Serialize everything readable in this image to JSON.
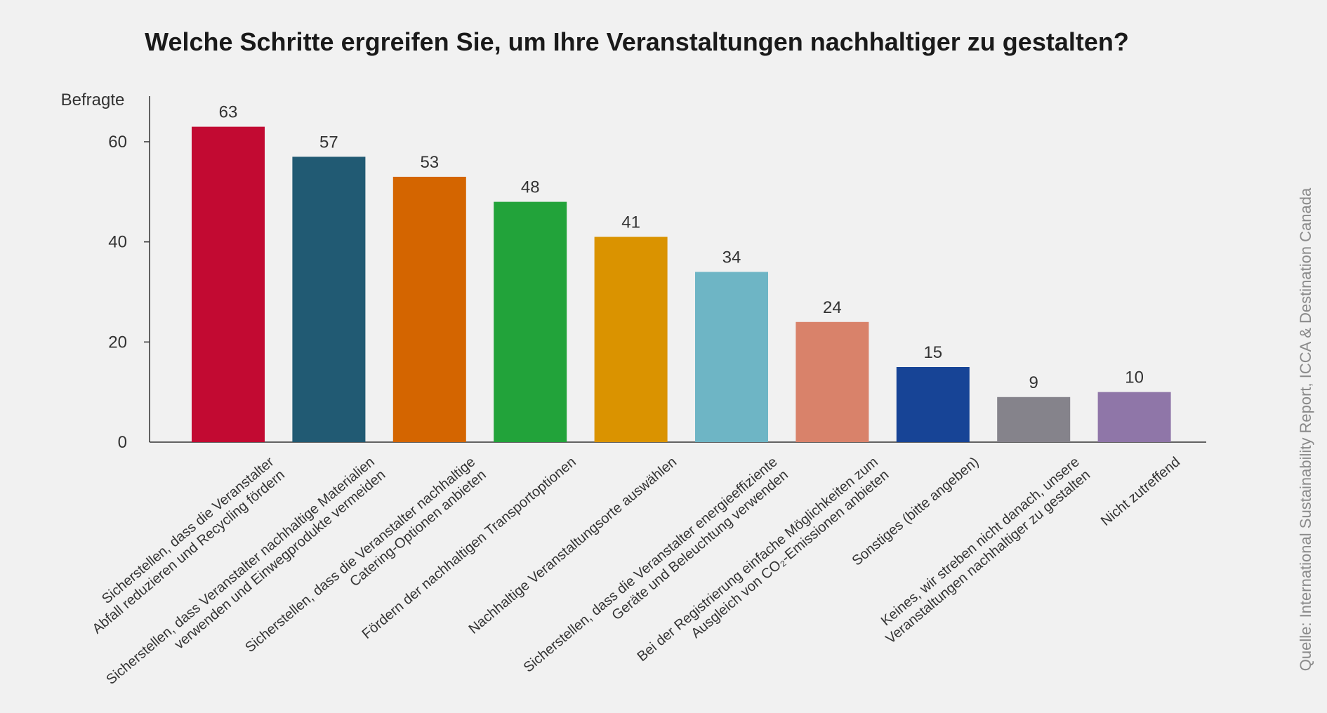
{
  "chart_data": {
    "type": "bar",
    "title": "Welche Schritte ergreifen Sie, um Ihre Veranstaltungen nachhaltiger zu gestalten?",
    "ylabel": "Befragte",
    "xlabel": "",
    "ylim": [
      0,
      70
    ],
    "yticks": [
      0,
      20,
      40,
      60
    ],
    "grid": false,
    "categories": [
      [
        "Sicherstellen, dass die Veranstalter",
        "Abfall reduzieren und Recycling fördern"
      ],
      [
        "Sicherstellen, dass Veranstalter nachhaltige Materialien",
        "verwenden und Einwegprodukte vermeiden"
      ],
      [
        "Sicherstellen, dass die Veranstalter nachhaltige",
        "Catering-Optionen anbieten"
      ],
      [
        "Fördern der nachhaltigen Transportoptionen"
      ],
      [
        "Nachhaltige Veranstaltungsorte auswählen"
      ],
      [
        "Sicherstellen, dass die Veranstalter energieeffiziente",
        "Geräte und Beleuchtung verwenden"
      ],
      [
        "Bei der Registrierung einfache Möglichkeiten zum",
        "Ausgleich von CO₂-Emissionen anbieten"
      ],
      [
        "Sonstiges (bitte angeben)"
      ],
      [
        "Keines, wir streben nicht danach, unsere",
        "Veranstaltungen nachhaltiger zu gestalten"
      ],
      [
        "Nicht zutreffend"
      ]
    ],
    "values": [
      63,
      57,
      53,
      48,
      41,
      34,
      24,
      15,
      9,
      10
    ],
    "colors": [
      "#c20a32",
      "#215a73",
      "#d46500",
      "#22a33a",
      "#da9300",
      "#6eb5c5",
      "#d9826a",
      "#174496",
      "#85838b",
      "#8f76a8"
    ]
  },
  "source": "Quelle: International Sustainability Report, ICCA & Destination Canada"
}
